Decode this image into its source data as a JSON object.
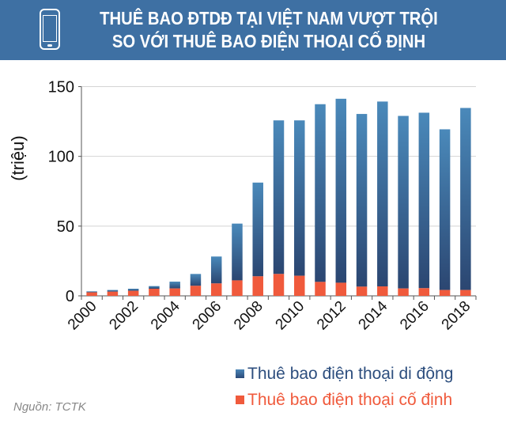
{
  "header": {
    "icon": "smartphone-icon",
    "title_line1": "THUÊ BAO ĐTDĐ TẠI VIỆT NAM VƯỢT TRỘI",
    "title_line2": "SO VỚI THUÊ BAO ĐIỆN THOẠI CỐ ĐỊNH",
    "background": "#3e70a3"
  },
  "chart_data": {
    "type": "bar",
    "stacked": true,
    "ylabel": "(triệu)",
    "ylim": [
      0,
      150
    ],
    "yticks": [
      0,
      50,
      100,
      150
    ],
    "grid": true,
    "categories": [
      "2000",
      "2001",
      "2002",
      "2003",
      "2004",
      "2005",
      "2006",
      "2007",
      "2008",
      "2009",
      "2010",
      "2011",
      "2012",
      "2013",
      "2014",
      "2015",
      "2016",
      "2017",
      "2018"
    ],
    "xtick_labels": [
      "2000",
      "2002",
      "2004",
      "2006",
      "2008",
      "2010",
      "2012",
      "2014",
      "2016",
      "2018"
    ],
    "series": [
      {
        "name": "Thuê bao điện thoại cố định",
        "color": "#f05a3c",
        "values": [
          2.5,
          3.0,
          3.6,
          5.1,
          5.3,
          7.2,
          8.9,
          11.1,
          14.0,
          15.7,
          14.4,
          10.0,
          9.4,
          6.6,
          6.8,
          5.3,
          5.5,
          4.2,
          4.2
        ]
      },
      {
        "name": "Thuê bao điện thoại di động",
        "color": "#3a6a9e",
        "values": [
          0.7,
          1.2,
          1.5,
          1.9,
          4.9,
          8.5,
          19.3,
          40.7,
          67.2,
          110.1,
          111.4,
          127.4,
          131.9,
          123.8,
          132.5,
          123.7,
          125.8,
          115.2,
          130.5
        ]
      }
    ],
    "legend": [
      "Thuê bao điện thoại di động",
      "Thuê bao điện thoại cố định"
    ],
    "legend_placement": "bottom-right"
  },
  "source": "Nguồn: TCTK"
}
